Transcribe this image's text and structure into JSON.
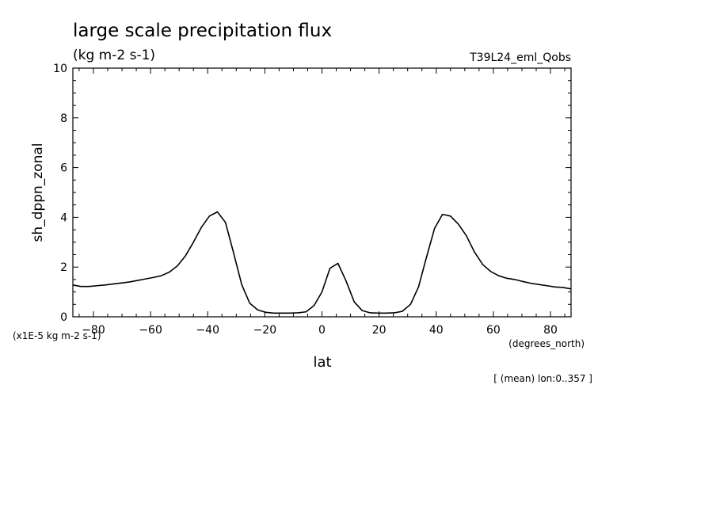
{
  "chart_data": {
    "type": "line",
    "title": "large scale precipitation flux",
    "units": "(kg m-2 s-1)",
    "run_label": "T39L24_eml_Qobs",
    "xlabel": "lat",
    "xunit": "(degrees_north)",
    "ylabel": "sh_dppn_zonal",
    "yscale_note": "(x1E-5 kg m-2 s-1)",
    "footer_note": "[ (mean) lon:0..357 ]",
    "xlim": [
      -87.2,
      87.2
    ],
    "ylim": [
      0,
      10
    ],
    "xticks": [
      -80,
      -60,
      -40,
      -20,
      0,
      20,
      40,
      60,
      80
    ],
    "yticks": [
      0,
      2,
      4,
      6,
      8,
      10
    ],
    "grid": false,
    "series": [
      {
        "x": [
          -87.2,
          -84.4,
          -81.6,
          -78.8,
          -75.9,
          -73.1,
          -70.3,
          -67.5,
          -64.7,
          -61.9,
          -59.1,
          -56.3,
          -53.4,
          -50.6,
          -47.8,
          -45.0,
          -42.2,
          -39.4,
          -36.6,
          -33.8,
          -31.0,
          -28.1,
          -25.3,
          -22.5,
          -19.7,
          -16.9,
          -14.1,
          -11.3,
          -8.4,
          -5.6,
          -2.8,
          0.0,
          2.8,
          5.6,
          8.4,
          11.3,
          14.1,
          16.9,
          19.7,
          22.5,
          25.3,
          28.1,
          31.0,
          33.8,
          36.6,
          39.4,
          42.2,
          45.0,
          47.8,
          50.6,
          53.4,
          56.3,
          59.1,
          61.9,
          64.7,
          67.5,
          70.3,
          73.1,
          75.9,
          78.8,
          81.6,
          84.4,
          87.2
        ],
        "values": [
          1.28,
          1.22,
          1.22,
          1.25,
          1.28,
          1.32,
          1.36,
          1.4,
          1.46,
          1.52,
          1.58,
          1.65,
          1.8,
          2.05,
          2.45,
          3.0,
          3.6,
          4.05,
          4.22,
          3.8,
          2.6,
          1.3,
          0.55,
          0.28,
          0.18,
          0.15,
          0.15,
          0.15,
          0.16,
          0.2,
          0.45,
          1.0,
          1.95,
          2.15,
          1.45,
          0.6,
          0.25,
          0.16,
          0.15,
          0.15,
          0.16,
          0.22,
          0.5,
          1.2,
          2.4,
          3.55,
          4.12,
          4.05,
          3.72,
          3.25,
          2.6,
          2.1,
          1.82,
          1.65,
          1.55,
          1.5,
          1.42,
          1.35,
          1.3,
          1.25,
          1.2,
          1.18,
          1.12
        ]
      }
    ]
  }
}
